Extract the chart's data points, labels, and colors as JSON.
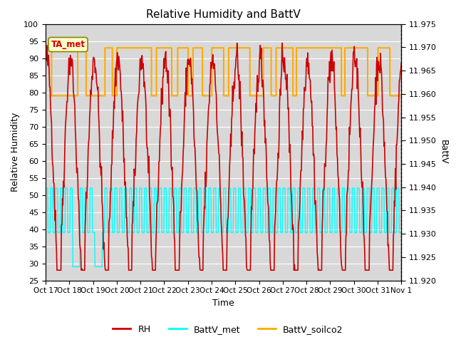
{
  "title": "Relative Humidity and BattV",
  "xlabel": "Time",
  "ylabel_left": "Relative Humidity",
  "ylabel_right": "BattV",
  "ylim_left": [
    25,
    100
  ],
  "ylim_right": [
    11.92,
    11.975
  ],
  "yticks_left": [
    25,
    30,
    35,
    40,
    45,
    50,
    55,
    60,
    65,
    70,
    75,
    80,
    85,
    90,
    95,
    100
  ],
  "yticks_right": [
    11.92,
    11.925,
    11.93,
    11.935,
    11.94,
    11.945,
    11.95,
    11.955,
    11.96,
    11.965,
    11.97,
    11.975
  ],
  "xtick_labels": [
    "Oct 17",
    "Oct 18",
    "Oct 19",
    "Oct 20",
    "Oct 21",
    "Oct 22",
    "Oct 23",
    "Oct 24",
    "Oct 25",
    "Oct 26",
    "Oct 27",
    "Oct 28",
    "Oct 29",
    "Oct 30",
    "Oct 31",
    "Nov 1"
  ],
  "rh_color": "#cc0000",
  "battv_met_color": "#00ffff",
  "battv_soilco2_color": "#ffaa00",
  "annotation_text": "TA_met",
  "annotation_color": "#cc0000",
  "annotation_bg": "#ffffcc",
  "bg_color": "#d8d8d8",
  "grid_color": "#ffffff",
  "rh_linewidth": 1.2,
  "battv_linewidth": 1.2,
  "legend_rh": "RH",
  "legend_met": "BattV_met",
  "legend_soilco2": "BattV_soilco2",
  "batt_met_high": 52,
  "batt_met_low": 39,
  "batt_met_drop": 29,
  "batt_soil_high": 93,
  "batt_soil_mid": 79
}
